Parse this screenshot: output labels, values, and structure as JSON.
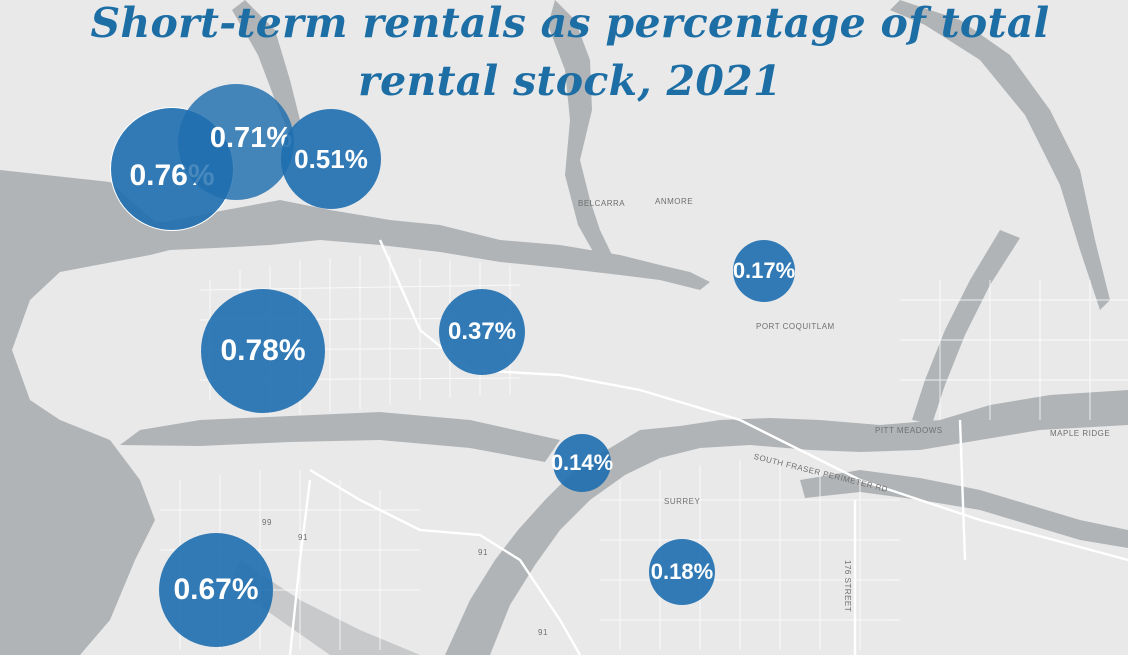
{
  "title": {
    "line1": "Short-term rentals as percentage of total",
    "line2": "rental stock, 2021"
  },
  "colors": {
    "background": "#ececec",
    "water": "#b0b3b5",
    "land": "#eaeaea",
    "roads": "#ffffff",
    "bubble": "#1e6eaf",
    "title": "#1d6ea5"
  },
  "place_labels": [
    {
      "id": "belcarra",
      "text": "BELCARRA"
    },
    {
      "id": "anmore",
      "text": "ANMORE"
    },
    {
      "id": "port-coquitlam",
      "text": "PORT COQUITLAM"
    },
    {
      "id": "pitt-meadows",
      "text": "PITT MEADOWS"
    },
    {
      "id": "maple-ridge",
      "text": "MAPLE RIDGE"
    },
    {
      "id": "surrey",
      "text": "SURREY"
    },
    {
      "id": "south-fraser-perimeter",
      "text": "SOUTH FRASER PERIMETER RD"
    },
    {
      "id": "176-street",
      "text": "176 STREET"
    }
  ],
  "route_markers": [
    "99",
    "91",
    "91",
    "91"
  ],
  "markers": [
    {
      "id": "west-vancouver",
      "label": "0.76%",
      "value": 0.76
    },
    {
      "id": "north-vancouver-district",
      "label": "0.71%",
      "value": 0.71
    },
    {
      "id": "north-vancouver-city",
      "label": "0.51%",
      "value": 0.51
    },
    {
      "id": "vancouver",
      "label": "0.78%",
      "value": 0.78
    },
    {
      "id": "burnaby",
      "label": "0.37%",
      "value": 0.37
    },
    {
      "id": "port-coquitlam",
      "label": "0.17%",
      "value": 0.17
    },
    {
      "id": "new-westminster",
      "label": "0.14%",
      "value": 0.14
    },
    {
      "id": "surrey",
      "label": "0.18%",
      "value": 0.18
    },
    {
      "id": "richmond",
      "label": "0.67%",
      "value": 0.67
    }
  ]
}
